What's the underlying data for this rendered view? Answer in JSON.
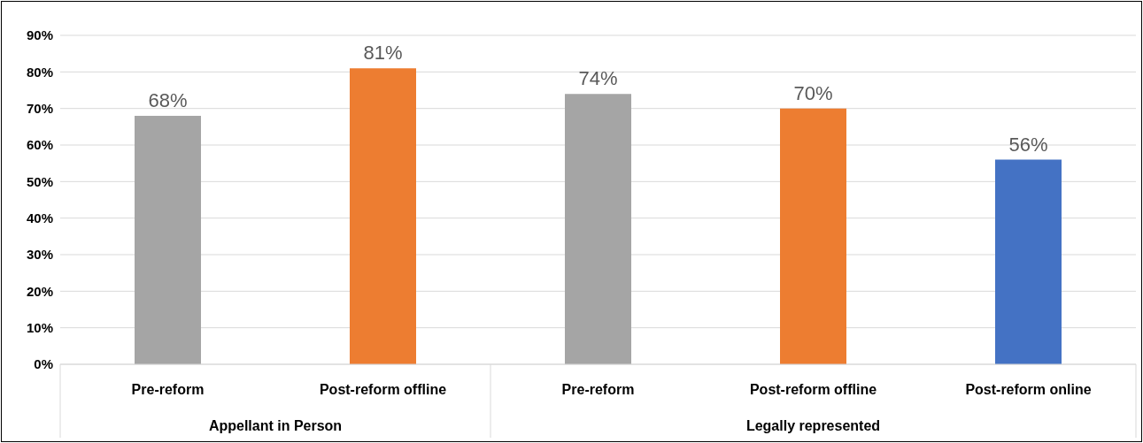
{
  "chart_data": {
    "type": "bar",
    "categories": [
      "Pre-reform",
      "Post-reform offline",
      "Pre-reform",
      "Post-reform offline",
      "Post-reform online"
    ],
    "values": [
      68,
      81,
      74,
      70,
      56
    ],
    "colors": [
      "#a5a5a5",
      "#ed7d31",
      "#a5a5a5",
      "#ed7d31",
      "#4472c4"
    ],
    "value_labels": [
      "68%",
      "81%",
      "74%",
      "70%",
      "56%"
    ],
    "ylim": [
      0,
      90
    ],
    "yticks": [
      {
        "value": 0,
        "label": "0%"
      },
      {
        "value": 10,
        "label": "10%"
      },
      {
        "value": 20,
        "label": "20%"
      },
      {
        "value": 30,
        "label": "30%"
      },
      {
        "value": 40,
        "label": "40%"
      },
      {
        "value": 50,
        "label": "50%"
      },
      {
        "value": 60,
        "label": "60%"
      },
      {
        "value": 70,
        "label": "70%"
      },
      {
        "value": 80,
        "label": "80%"
      },
      {
        "value": 90,
        "label": "90%"
      }
    ],
    "grid": "y",
    "annotations": [
      "Appellant in Person",
      "Legally represented"
    ]
  }
}
